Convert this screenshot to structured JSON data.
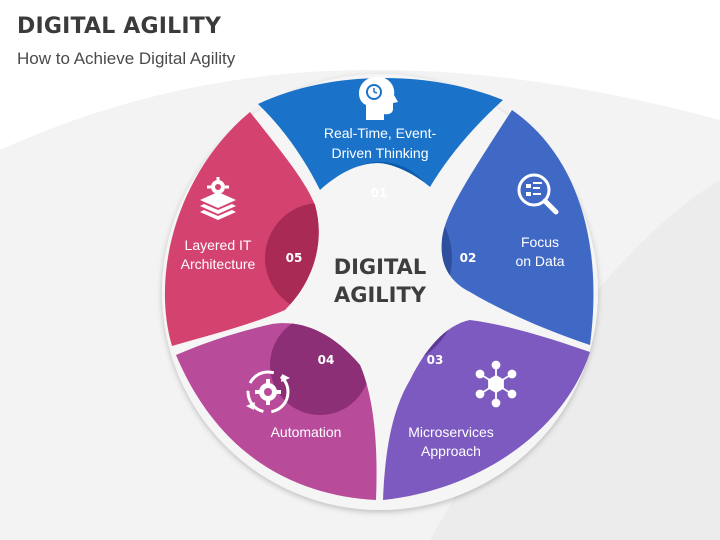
{
  "header": {
    "title": "DIGITAL AGILITY",
    "subtitle": "How to Achieve Digital Agility"
  },
  "center": {
    "line1": "DIGITAL",
    "line2": "AGILITY"
  },
  "segments": [
    {
      "number": "01",
      "line1": "Real-Time, Event-",
      "line2": "Driven Thinking",
      "icon": "head-clock-icon",
      "color": "#1a73c9",
      "circle_color": "#0a5aa8"
    },
    {
      "number": "02",
      "line1": "Focus",
      "line2": "on Data",
      "icon": "magnifier-data-icon",
      "color": "#4068c5",
      "circle_color": "#2e4f9e"
    },
    {
      "number": "03",
      "line1": "Microservices",
      "line2": "Approach",
      "icon": "network-hub-icon",
      "color": "#7d5abf",
      "circle_color": "#5c3b98"
    },
    {
      "number": "04",
      "line1": "Automation",
      "line2": "",
      "icon": "gear-cycle-icon",
      "color": "#b94b9b",
      "circle_color": "#8c2f76"
    },
    {
      "number": "05",
      "line1": "Layered IT",
      "line2": "Architecture",
      "icon": "layers-gear-icon",
      "color": "#d4436f",
      "circle_color": "#a82a55"
    }
  ]
}
